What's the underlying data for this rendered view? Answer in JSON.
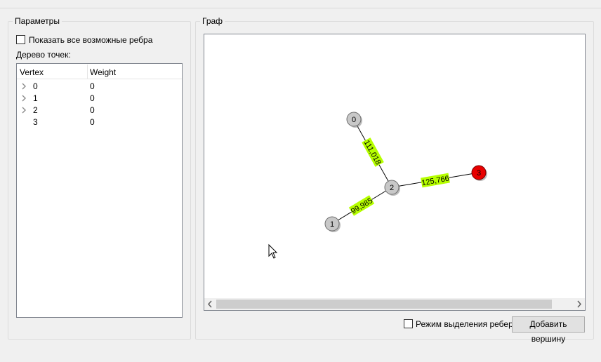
{
  "params_group": {
    "title": "Параметры",
    "show_all_edges_label": "Показать все возможные ребра",
    "tree_label": "Дерево точек:",
    "tree": {
      "columns": [
        "Vertex",
        "Weight"
      ],
      "rows": [
        {
          "vertex": "0",
          "weight": "0",
          "expandable": true
        },
        {
          "vertex": "1",
          "weight": "0",
          "expandable": true
        },
        {
          "vertex": "2",
          "weight": "0",
          "expandable": true
        },
        {
          "vertex": "3",
          "weight": "0",
          "expandable": false
        }
      ]
    }
  },
  "graph_group": {
    "title": "Граф",
    "nodes": [
      {
        "id": "0",
        "color": "#c8c8c8"
      },
      {
        "id": "1",
        "color": "#c8c8c8"
      },
      {
        "id": "2",
        "color": "#c8c8c8"
      },
      {
        "id": "3",
        "color": "#e80000"
      }
    ],
    "edges": [
      {
        "from": "0",
        "to": "2",
        "label": "111,018"
      },
      {
        "from": "2",
        "to": "1",
        "label": "99,985"
      },
      {
        "from": "2",
        "to": "3",
        "label": "125,766"
      }
    ],
    "edge_label_color": "#b6ff00",
    "edge_selection_mode_label": "Режим выделения ребер",
    "add_vertex_label": "Добавить вершину"
  }
}
